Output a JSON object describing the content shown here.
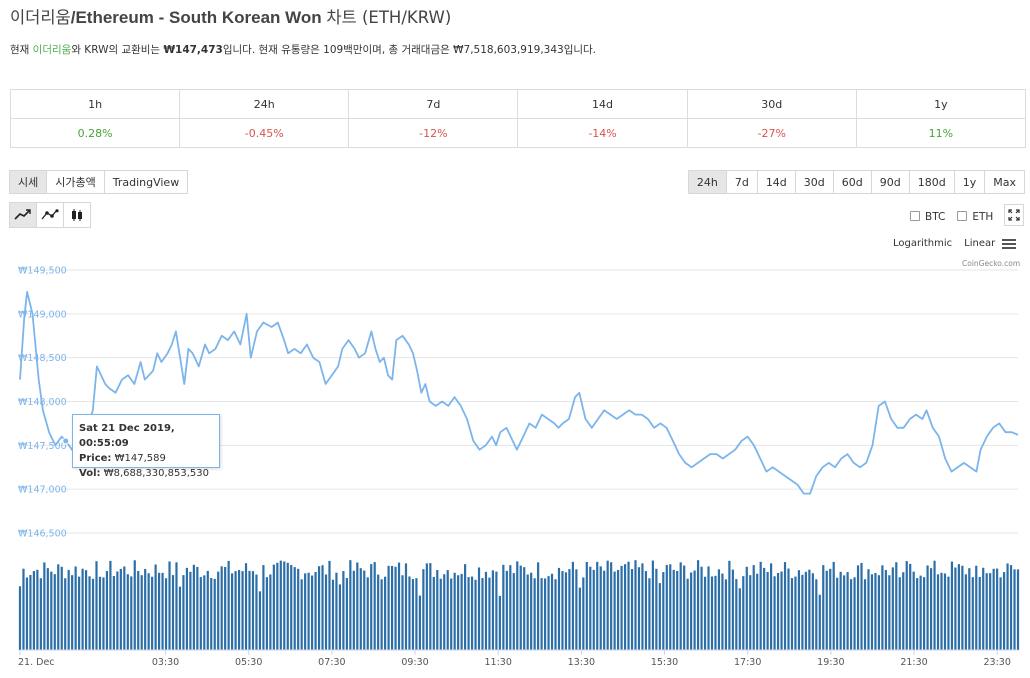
{
  "header": {
    "title_ko": "이더리움",
    "title_en": "/Ethereum - South Korean Won ",
    "title_suffix": "차트 (ETH/KRW)"
  },
  "summary": {
    "prefix": "현재 ",
    "coin": "이더리움",
    "mid": "와 KRW의 교환비는 ",
    "rate": "₩147,473",
    "rest": "입니다. 현재 유통량은 109백만이며, 총 거래대금은 ₩7,518,603,919,343입니다."
  },
  "performance": {
    "periods": [
      "1h",
      "24h",
      "7d",
      "14d",
      "30d",
      "1y"
    ],
    "changes": [
      "0.28%",
      "-0.45%",
      "-12%",
      "-14%",
      "-27%",
      "11%"
    ],
    "positive_color": "#4aa33a",
    "negative_color": "#d9534f"
  },
  "toolbar": {
    "tab_price": "시세",
    "tab_mcap": "시가총액",
    "tab_tv": "TradingView",
    "ranges": [
      "24h",
      "7d",
      "14d",
      "30d",
      "60d",
      "90d",
      "180d",
      "1y",
      "Max"
    ],
    "active_range": "24h"
  },
  "chart_types": [
    "line-chart-icon",
    "line-markers-icon",
    "candlestick-icon"
  ],
  "legend": {
    "btc": "BTC",
    "eth": "ETH"
  },
  "scale": {
    "log": "Logarithmic",
    "linear": "Linear"
  },
  "credits": "CoinGecko.com",
  "tooltip": {
    "date": "Sat 21 Dec 2019, 00:55:09",
    "price_label": "Price:",
    "price": "₩147,589",
    "vol_label": "Vol:",
    "vol": "₩8,688,330,853,530"
  },
  "chart_data": {
    "type": "line",
    "currency": "KRW",
    "line_color": "#7cb5ec",
    "volume_color": "#2b6ea8",
    "ylim": [
      146500,
      149500
    ],
    "y_ticks": [
      146500,
      147000,
      147500,
      148000,
      148500,
      149000,
      149500
    ],
    "y_tick_labels": [
      "₩146,500",
      "₩147,000",
      "₩147,500",
      "₩148,000",
      "₩148,500",
      "₩149,000",
      "₩149,500"
    ],
    "x_tick_labels": [
      "21. Dec",
      "03:30",
      "05:30",
      "07:30",
      "09:30",
      "11:30",
      "13:30",
      "15:30",
      "17:30",
      "19:30",
      "21:30",
      "23:30"
    ],
    "x_hours": [
      0,
      3.5,
      5.5,
      7.5,
      9.5,
      11.5,
      13.5,
      15.5,
      17.5,
      19.5,
      21.5,
      23.5
    ],
    "x_range_hours": [
      0,
      24
    ],
    "price_points": [
      [
        0.0,
        148250
      ],
      [
        0.1,
        148950
      ],
      [
        0.17,
        149250
      ],
      [
        0.3,
        149000
      ],
      [
        0.45,
        148250
      ],
      [
        0.55,
        147900
      ],
      [
        0.7,
        147650
      ],
      [
        0.85,
        147500
      ],
      [
        1.0,
        147600
      ],
      [
        1.1,
        147550
      ],
      [
        1.25,
        147450
      ],
      [
        1.45,
        147700
      ],
      [
        1.6,
        147650
      ],
      [
        1.75,
        147900
      ],
      [
        1.85,
        148400
      ],
      [
        1.95,
        148300
      ],
      [
        2.05,
        148200
      ],
      [
        2.15,
        148150
      ],
      [
        2.3,
        148100
      ],
      [
        2.45,
        148250
      ],
      [
        2.6,
        148300
      ],
      [
        2.75,
        148200
      ],
      [
        2.9,
        148450
      ],
      [
        3.0,
        148250
      ],
      [
        3.1,
        148300
      ],
      [
        3.2,
        148350
      ],
      [
        3.3,
        148550
      ],
      [
        3.4,
        148450
      ],
      [
        3.55,
        148550
      ],
      [
        3.65,
        148650
      ],
      [
        3.75,
        148800
      ],
      [
        3.85,
        148500
      ],
      [
        3.95,
        148200
      ],
      [
        4.05,
        148600
      ],
      [
        4.15,
        148550
      ],
      [
        4.3,
        148400
      ],
      [
        4.45,
        148650
      ],
      [
        4.55,
        148550
      ],
      [
        4.7,
        148600
      ],
      [
        4.85,
        148750
      ],
      [
        5.0,
        148700
      ],
      [
        5.15,
        148800
      ],
      [
        5.3,
        148650
      ],
      [
        5.45,
        149000
      ],
      [
        5.55,
        148500
      ],
      [
        5.7,
        148800
      ],
      [
        5.85,
        148900
      ],
      [
        6.05,
        148850
      ],
      [
        6.2,
        148900
      ],
      [
        6.35,
        148700
      ],
      [
        6.45,
        148550
      ],
      [
        6.6,
        148600
      ],
      [
        6.75,
        148550
      ],
      [
        6.9,
        148650
      ],
      [
        7.05,
        148500
      ],
      [
        7.2,
        148450
      ],
      [
        7.35,
        148200
      ],
      [
        7.5,
        148300
      ],
      [
        7.65,
        148400
      ],
      [
        7.75,
        148600
      ],
      [
        7.9,
        148700
      ],
      [
        8.05,
        148600
      ],
      [
        8.15,
        148500
      ],
      [
        8.3,
        148550
      ],
      [
        8.45,
        148800
      ],
      [
        8.55,
        148600
      ],
      [
        8.65,
        148450
      ],
      [
        8.75,
        148500
      ],
      [
        8.85,
        148300
      ],
      [
        8.95,
        148250
      ],
      [
        9.05,
        148700
      ],
      [
        9.2,
        148750
      ],
      [
        9.35,
        148650
      ],
      [
        9.45,
        148550
      ],
      [
        9.55,
        148350
      ],
      [
        9.65,
        148100
      ],
      [
        9.75,
        148200
      ],
      [
        9.85,
        148000
      ],
      [
        10.0,
        147950
      ],
      [
        10.15,
        148000
      ],
      [
        10.3,
        147950
      ],
      [
        10.45,
        148050
      ],
      [
        10.6,
        147950
      ],
      [
        10.75,
        147800
      ],
      [
        10.9,
        147550
      ],
      [
        11.05,
        147450
      ],
      [
        11.2,
        147500
      ],
      [
        11.35,
        147600
      ],
      [
        11.45,
        147500
      ],
      [
        11.55,
        147650
      ],
      [
        11.7,
        147700
      ],
      [
        11.8,
        147600
      ],
      [
        11.95,
        147450
      ],
      [
        12.1,
        147600
      ],
      [
        12.25,
        147750
      ],
      [
        12.4,
        147700
      ],
      [
        12.55,
        147850
      ],
      [
        12.7,
        147800
      ],
      [
        12.85,
        147750
      ],
      [
        12.95,
        147700
      ],
      [
        13.05,
        147750
      ],
      [
        13.2,
        147800
      ],
      [
        13.35,
        148050
      ],
      [
        13.45,
        148100
      ],
      [
        13.6,
        147800
      ],
      [
        13.75,
        147700
      ],
      [
        13.9,
        147800
      ],
      [
        14.05,
        147900
      ],
      [
        14.2,
        147850
      ],
      [
        14.35,
        147800
      ],
      [
        14.5,
        147850
      ],
      [
        14.65,
        147900
      ],
      [
        14.8,
        147850
      ],
      [
        14.95,
        147850
      ],
      [
        15.1,
        147800
      ],
      [
        15.25,
        147700
      ],
      [
        15.4,
        147750
      ],
      [
        15.55,
        147700
      ],
      [
        15.7,
        147550
      ],
      [
        15.85,
        147400
      ],
      [
        16.0,
        147300
      ],
      [
        16.15,
        147250
      ],
      [
        16.3,
        147300
      ],
      [
        16.45,
        147350
      ],
      [
        16.6,
        147400
      ],
      [
        16.75,
        147400
      ],
      [
        16.9,
        147350
      ],
      [
        17.05,
        147400
      ],
      [
        17.2,
        147450
      ],
      [
        17.35,
        147550
      ],
      [
        17.5,
        147600
      ],
      [
        17.65,
        147500
      ],
      [
        17.8,
        147350
      ],
      [
        17.95,
        147200
      ],
      [
        18.1,
        147250
      ],
      [
        18.25,
        147200
      ],
      [
        18.4,
        147150
      ],
      [
        18.55,
        147100
      ],
      [
        18.7,
        147050
      ],
      [
        18.85,
        146950
      ],
      [
        19.0,
        146950
      ],
      [
        19.15,
        147150
      ],
      [
        19.3,
        147250
      ],
      [
        19.45,
        147300
      ],
      [
        19.6,
        147250
      ],
      [
        19.75,
        147350
      ],
      [
        19.9,
        147400
      ],
      [
        20.05,
        147300
      ],
      [
        20.2,
        147250
      ],
      [
        20.35,
        147300
      ],
      [
        20.5,
        147500
      ],
      [
        20.65,
        147950
      ],
      [
        20.8,
        148000
      ],
      [
        20.95,
        147800
      ],
      [
        21.1,
        147700
      ],
      [
        21.25,
        147700
      ],
      [
        21.4,
        147800
      ],
      [
        21.55,
        147850
      ],
      [
        21.7,
        147800
      ],
      [
        21.8,
        147900
      ],
      [
        21.95,
        147700
      ],
      [
        22.1,
        147600
      ],
      [
        22.25,
        147350
      ],
      [
        22.4,
        147200
      ],
      [
        22.55,
        147250
      ],
      [
        22.7,
        147300
      ],
      [
        22.85,
        147250
      ],
      [
        23.0,
        147200
      ],
      [
        23.1,
        147450
      ],
      [
        23.25,
        147600
      ],
      [
        23.4,
        147700
      ],
      [
        23.55,
        147750
      ],
      [
        23.7,
        147650
      ],
      [
        23.85,
        147650
      ],
      [
        24.0,
        147620
      ]
    ]
  }
}
